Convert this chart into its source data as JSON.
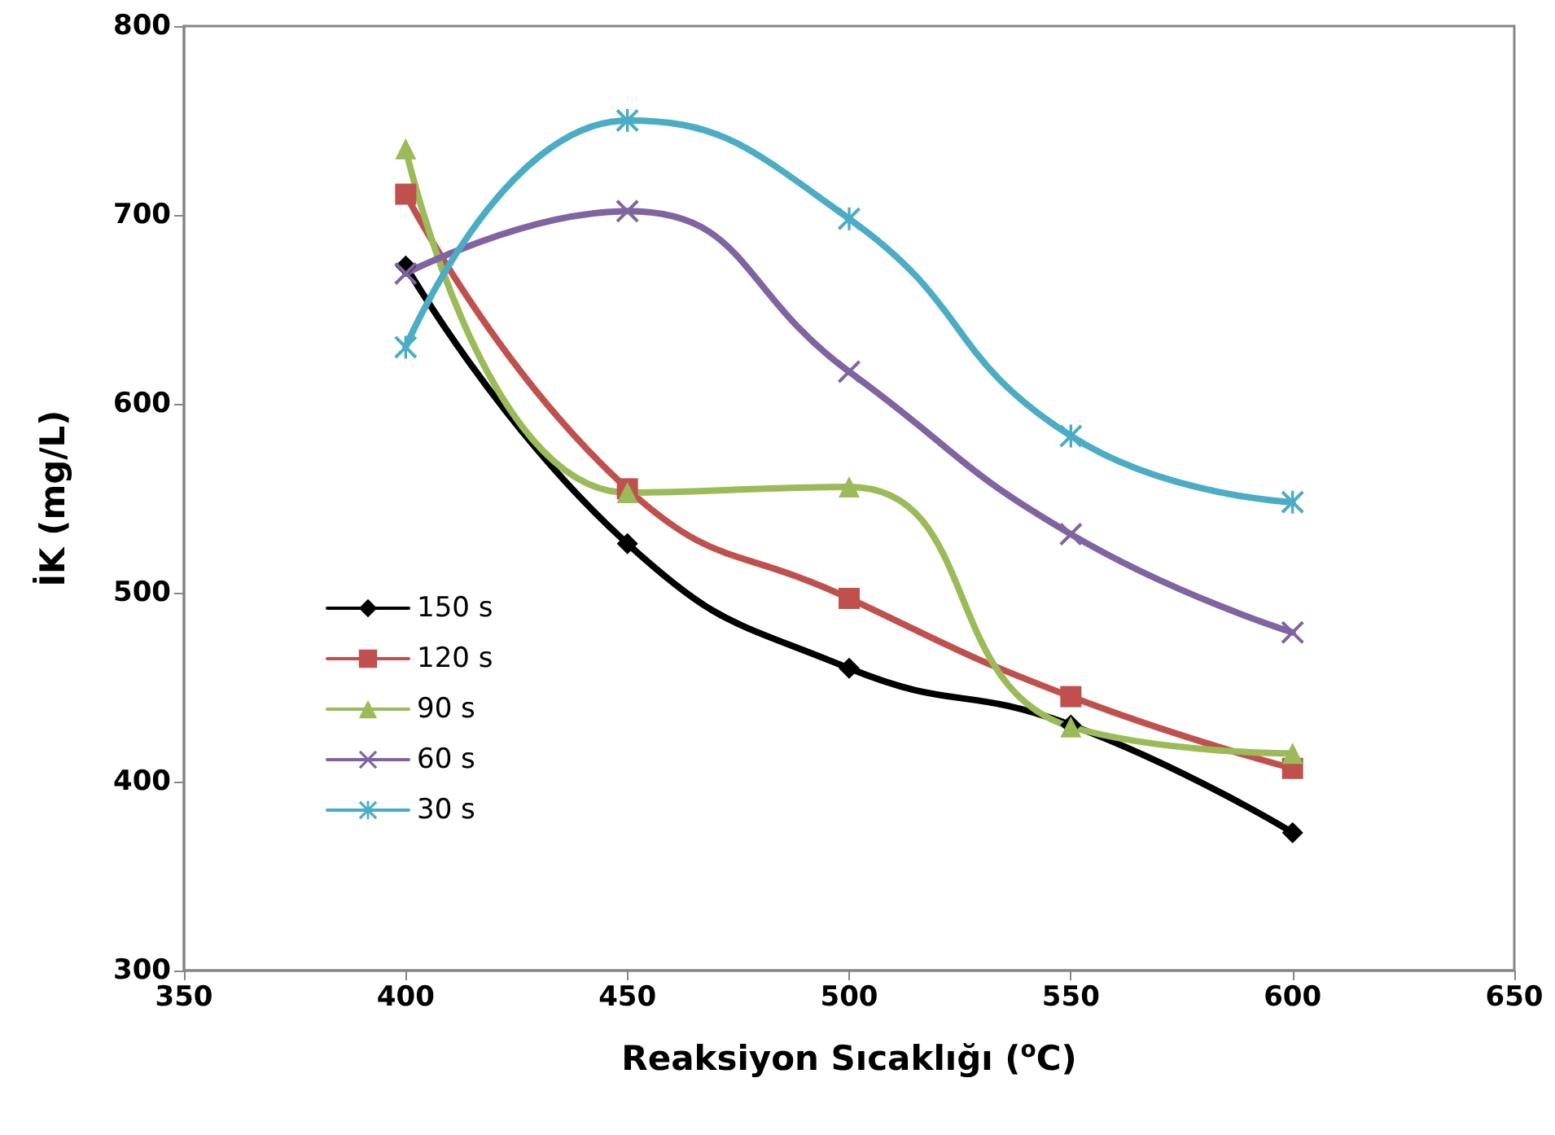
{
  "chart_data": {
    "type": "line",
    "xlabel": "Reaksiyon Sıcaklığı ($^{o}$C)",
    "ylabel": "İK (mg/L)",
    "x": [
      400,
      450,
      500,
      550,
      600
    ],
    "xlim": [
      350,
      650
    ],
    "xticks": [
      350,
      400,
      450,
      500,
      550,
      600,
      650
    ],
    "ylim": [
      300,
      800
    ],
    "yticks": [
      300,
      400,
      500,
      600,
      700,
      800
    ],
    "grid": false,
    "legend": "left",
    "line_style": "solid",
    "series": [
      {
        "name": "150 s",
        "color": "#000000",
        "marker": "diamond",
        "values": [
          673,
          526,
          460,
          430,
          373
        ]
      },
      {
        "name": "120 s",
        "color": "#c0504d",
        "marker": "square",
        "values": [
          711,
          555,
          497,
          445,
          407
        ]
      },
      {
        "name": "90 s",
        "color": "#9bbb59",
        "marker": "triangle",
        "values": [
          735,
          553,
          556,
          429,
          415
        ]
      },
      {
        "name": "60 s",
        "color": "#8064a2",
        "marker": "cross",
        "values": [
          669,
          702,
          617,
          531,
          479
        ]
      },
      {
        "name": "30 s",
        "color": "#4bacc6",
        "marker": "star",
        "values": [
          630,
          750,
          698,
          583,
          548
        ]
      }
    ]
  }
}
